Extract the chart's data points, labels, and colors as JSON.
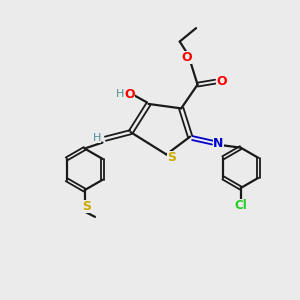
{
  "background_color": "#ebebeb",
  "atom_colors": {
    "C": "#000000",
    "O": "#ff0000",
    "N": "#0000cd",
    "S": "#ccaa00",
    "Cl": "#22cc22",
    "H": "#4a9090"
  },
  "bond_color": "#1a1a1a",
  "figsize": [
    3.0,
    3.0
  ],
  "dpi": 100
}
